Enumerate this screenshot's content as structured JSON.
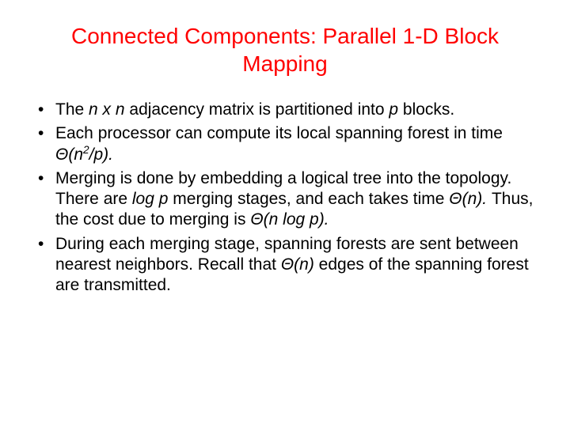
{
  "title_color": "#ff0000",
  "text_color": "#000000",
  "background_color": "#ffffff",
  "title_fontsize": 28,
  "body_fontsize": 21,
  "title": "Connected Components: Parallel 1-D Block Mapping",
  "bullets": [
    "The <span class=\"ital\">n x n</span> adjacency matrix is partitioned into <span class=\"ital\">p</span> blocks.",
    "Each processor can compute its local spanning forest in time <span class=\"ital\">Θ(n<sup>2</sup>/p).</span>",
    "Merging is done by embedding a logical tree into the topology. There are <span class=\"ital\">log p</span> merging stages, and each takes time <span class=\"ital\">Θ(n).</span> Thus, the cost due to merging is <span class=\"ital\">Θ(n log p).</span>",
    "During each merging stage, spanning forests are sent between nearest neighbors. Recall that <span class=\"ital\">Θ(n)</span> edges of the spanning forest are transmitted."
  ]
}
